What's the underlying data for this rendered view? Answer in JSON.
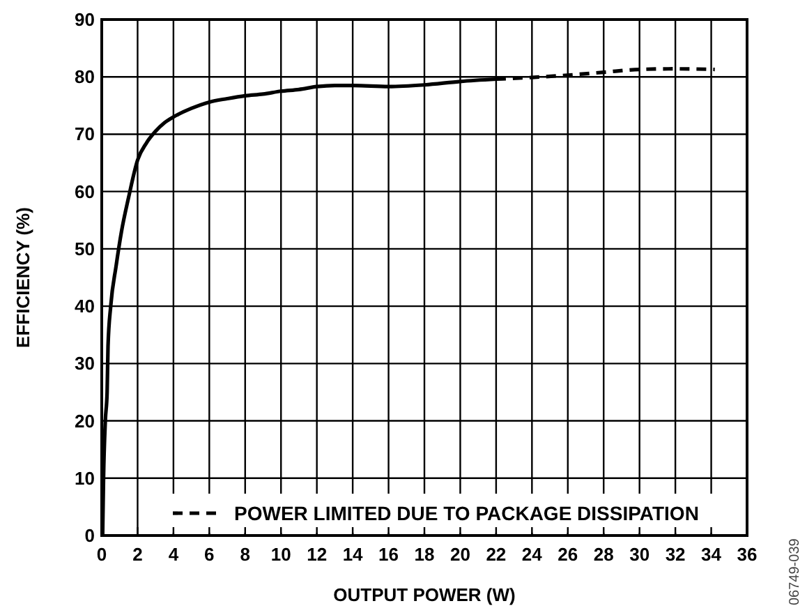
{
  "chart_data": {
    "type": "line",
    "xlabel": "OUTPUT POWER (W)",
    "ylabel": "EFFICIENCY (%)",
    "xlim": [
      0,
      36
    ],
    "xticks": [
      0,
      2,
      4,
      6,
      8,
      10,
      12,
      14,
      16,
      18,
      20,
      22,
      24,
      26,
      28,
      30,
      32,
      34,
      36
    ],
    "ylim": [
      0,
      90
    ],
    "yticks": [
      0,
      10,
      20,
      30,
      40,
      50,
      60,
      70,
      80,
      90
    ],
    "grid": true,
    "legend": "bottom right",
    "annotations": [
      "06749-039"
    ],
    "series": [
      {
        "color": "#000000",
        "line_style": "solid",
        "x": [
          0.05,
          0.1,
          0.2,
          0.3,
          0.35,
          0.5,
          0.8,
          1.1,
          1.5,
          2,
          2.5,
          3,
          3.5,
          4,
          5,
          6,
          7,
          8,
          9,
          10,
          11,
          12,
          13,
          14,
          16,
          18,
          20,
          22
        ],
        "values": [
          0,
          10,
          20,
          25,
          33,
          40,
          47,
          53,
          59,
          65.5,
          68.5,
          70.5,
          72,
          73,
          74.5,
          75.6,
          76.2,
          76.7,
          77,
          77.5,
          77.8,
          78.3,
          78.5,
          78.5,
          78.3,
          78.6,
          79.2,
          79.6
        ]
      },
      {
        "name": "POWER LIMITED DUE TO PACKAGE DISSIPATION",
        "color": "#000000",
        "line_style": "dashed",
        "x": [
          22,
          24,
          26,
          28,
          30,
          32,
          34.2
        ],
        "values": [
          79.6,
          79.9,
          80.3,
          80.8,
          81.3,
          81.4,
          81.3
        ]
      }
    ]
  }
}
